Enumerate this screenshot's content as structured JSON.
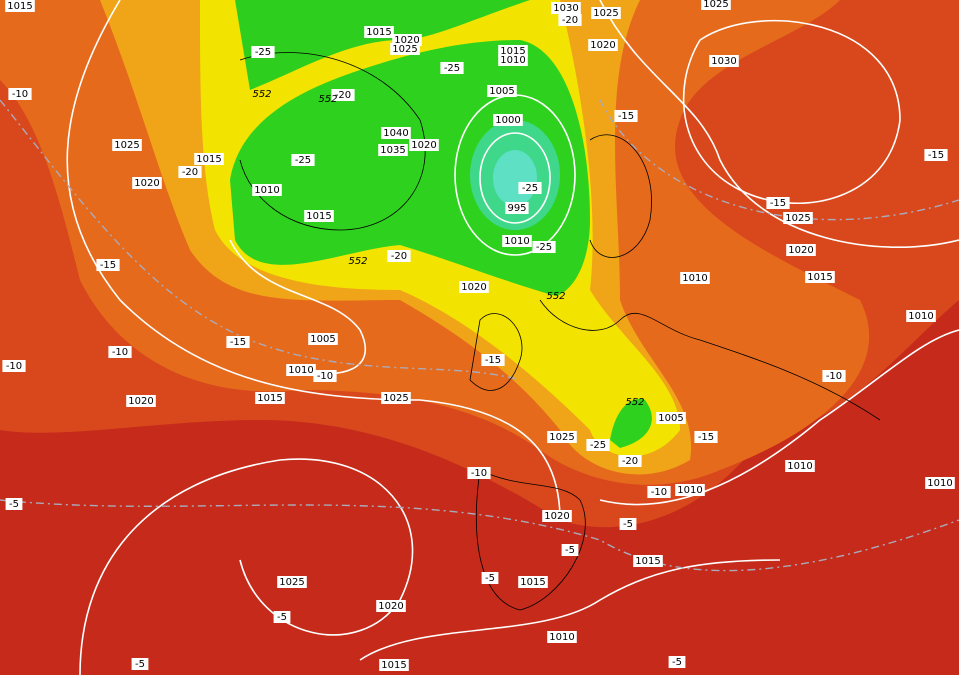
{
  "isobar_labels": [
    "1015",
    "1025",
    "1015",
    "1020",
    "1010",
    "1015",
    "1015",
    "1020",
    "1025",
    "1040",
    "1035",
    "1020",
    "1015",
    "1010",
    "1005",
    "1000",
    "995",
    "1010",
    "1020",
    "1005",
    "1010",
    "1015",
    "1020",
    "1025",
    "1025",
    "1030",
    "1025",
    "1020",
    "1025",
    "1030",
    "1025",
    "1020",
    "1015",
    "1010",
    "1010",
    "1005",
    "1010",
    "1010",
    "1020",
    "1015",
    "1015",
    "1025",
    "1020",
    "1010",
    "1015",
    "1010"
  ],
  "temperature_labels": [
    "-25",
    "-20",
    "-25",
    "-20",
    "-25",
    "-25",
    "-25",
    "-20",
    "-15",
    "-20",
    "-15",
    "-15",
    "-15",
    "-10",
    "-10",
    "-15",
    "-10",
    "-15",
    "-10",
    "-10",
    "-15",
    "-25",
    "-20",
    "-10",
    "-5",
    "-5",
    "-5",
    "-5",
    "-5",
    "-5",
    "-5",
    "-10"
  ],
  "height_labels": [
    "552",
    "552",
    "552",
    "552",
    "552"
  ]
}
